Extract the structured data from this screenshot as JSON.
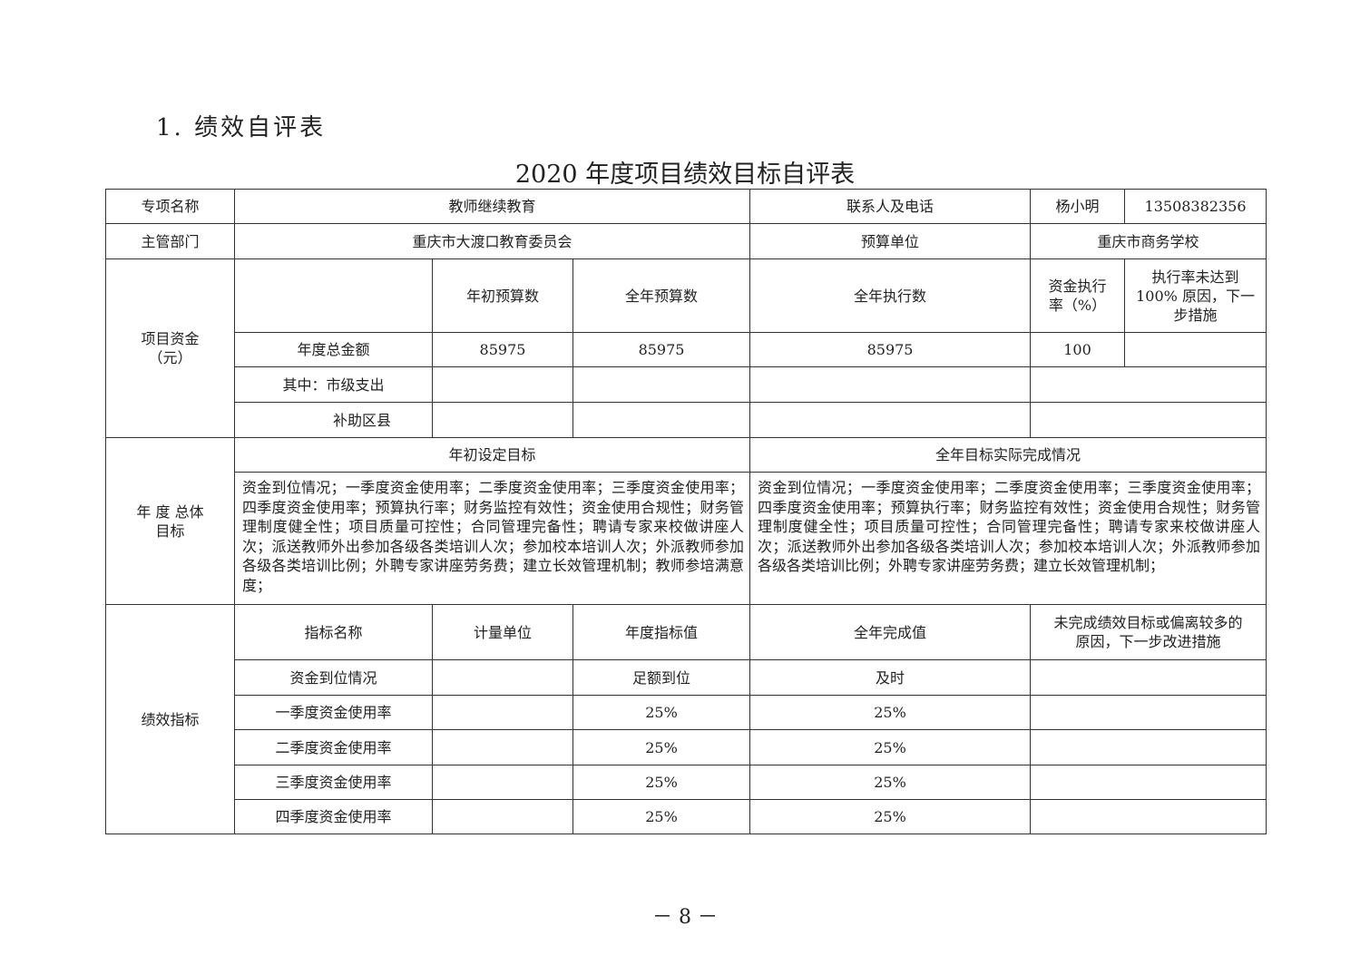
{
  "heading": "1. 绩效自评表",
  "title": "2020 年度项目绩效目标自评表",
  "row1": {
    "label": "专项名称",
    "project": "教师继续教育",
    "contact_label": "联系人及电话",
    "contact": "杨小明",
    "phone": "13508382356"
  },
  "row2": {
    "label": "主管部门",
    "dept": "重庆市大渡口教育委员会",
    "unit_label": "预算单位",
    "unit": "重庆市商务学校"
  },
  "funds": {
    "label": "项目资金（元）",
    "headers": [
      "年初预算数",
      "全年预算数",
      "全年执行数",
      "资金执行率（%）",
      "执行率未达到100% 原因，下一步措施"
    ],
    "total": {
      "label": "年度总金额",
      "initial": "85975",
      "annual": "85975",
      "executed": "85975",
      "rate": "100"
    },
    "city_label": "其中：市级支出",
    "county_label": "补助区县"
  },
  "goals": {
    "label": "年 度 总体目标",
    "set_label": "年初设定目标",
    "actual_label": "全年目标实际完成情况",
    "set_text": "资金到位情况；一季度资金使用率；二季度资金使用率；三季度资金使用率；四季度资金使用率；预算执行率；财务监控有效性；资金使用合规性；财务管理制度健全性；项目质量可控性；合同管理完备性；聘请专家来校做讲座人次；派送教师外出参加各级各类培训人次；参加校本培训人次；外派教师参加各级各类培训比例；外聘专家讲座劳务费；建立长效管理机制；教师参培满意度；",
    "actual_text": "资金到位情况；一季度资金使用率；二季度资金使用率；三季度资金使用率；四季度资金使用率；预算执行率；财务监控有效性；资金使用合规性；财务管理制度健全性；项目质量可控性；合同管理完备性；聘请专家来校做讲座人次；派送教师外出参加各级各类培训人次；参加校本培训人次；外派教师参加各级各类培训比例；外聘专家讲座劳务费；建立长效管理机制；"
  },
  "indicators": {
    "label": "绩效指标",
    "headers": [
      "指标名称",
      "计量单位",
      "年度指标值",
      "全年完成值",
      "未完成绩效目标或偏离较多的原因，下一步改进措施"
    ],
    "rows": [
      {
        "name": "资金到位情况",
        "unit": "",
        "target": "足额到位",
        "actual": "及时",
        "note": ""
      },
      {
        "name": "一季度资金使用率",
        "unit": "",
        "target": "25%",
        "actual": "25%",
        "note": ""
      },
      {
        "name": "二季度资金使用率",
        "unit": "",
        "target": "25%",
        "actual": "25%",
        "note": ""
      },
      {
        "name": "三季度资金使用率",
        "unit": "",
        "target": "25%",
        "actual": "25%",
        "note": ""
      },
      {
        "name": "四季度资金使用率",
        "unit": "",
        "target": "25%",
        "actual": "25%",
        "note": ""
      }
    ]
  },
  "page_number": "－ 8 －"
}
